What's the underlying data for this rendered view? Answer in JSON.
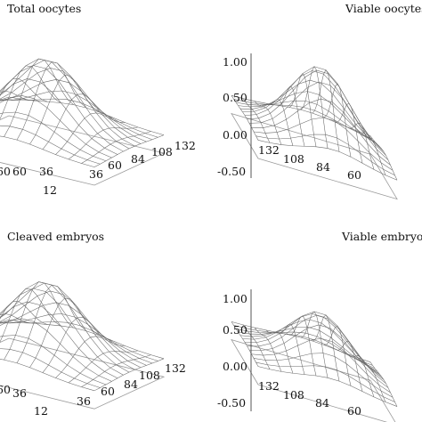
{
  "chart_data": [
    {
      "type": "surface",
      "title": "Total oocytes",
      "z_peak": 0.9,
      "y_ticks": [
        "60",
        "36",
        "12"
      ],
      "x_ticks": [
        "36",
        "60",
        "84",
        "108",
        "132"
      ],
      "z_ticks": []
    },
    {
      "type": "surface",
      "title": "Viable oocytes",
      "z_peak": 0.95,
      "y_ticks": [],
      "x_ticks": [
        "132",
        "108",
        "84",
        "60"
      ],
      "z_ticks": [
        "1.00",
        "0.50",
        "0.00",
        "-0.50"
      ],
      "zlim": [
        -0.5,
        1.0
      ]
    },
    {
      "type": "surface",
      "title": "Cleaved embryos",
      "z_peak": 0.9,
      "y_ticks": [
        "60",
        "36",
        "12"
      ],
      "x_ticks": [
        "36",
        "60",
        "84",
        "108",
        "132"
      ],
      "z_ticks": []
    },
    {
      "type": "surface",
      "title": "Viable embryos",
      "z_peak": 0.7,
      "y_ticks": [],
      "x_ticks": [
        "132",
        "108",
        "84",
        "60"
      ],
      "z_ticks": [
        "1.00",
        "0.50",
        "0.00",
        "-0.50"
      ],
      "zlim": [
        -0.5,
        1.0
      ]
    }
  ]
}
